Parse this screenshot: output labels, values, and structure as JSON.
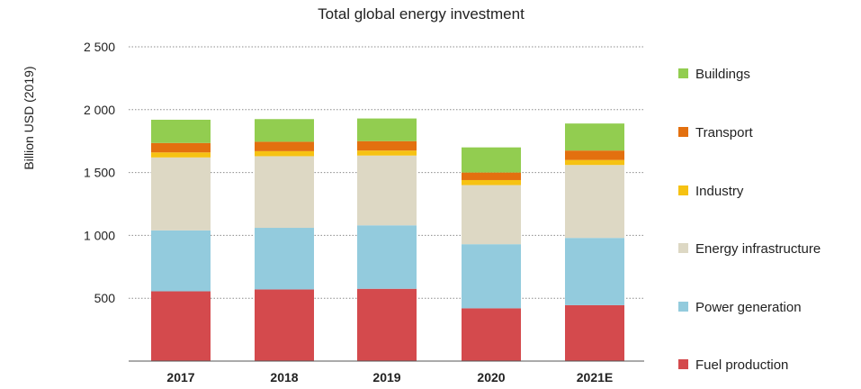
{
  "chart_data": {
    "type": "bar",
    "stacked": true,
    "title": "Total global energy investment",
    "xlabel": "",
    "ylabel": "Billion USD (2019)",
    "categories": [
      "2017",
      "2018",
      "2019",
      "2020",
      "2021E"
    ],
    "ylim": [
      0,
      2500
    ],
    "yticks": [
      500,
      1000,
      1500,
      2000,
      2500
    ],
    "ytick_labels": [
      "500",
      "1 000",
      "1 500",
      "2 000",
      "2 500"
    ],
    "grid": "horizontal dotted",
    "legend_position": "right",
    "series": [
      {
        "name": "Fuel production",
        "color": "#d44a4d",
        "values": [
          555,
          570,
          575,
          420,
          445
        ]
      },
      {
        "name": "Power generation",
        "color": "#93cbdd",
        "values": [
          485,
          490,
          505,
          510,
          535
        ]
      },
      {
        "name": "Energy infrastructure",
        "color": "#ddd8c4",
        "values": [
          580,
          570,
          555,
          470,
          580
        ]
      },
      {
        "name": "Industry",
        "color": "#f6c213",
        "values": [
          40,
          40,
          40,
          40,
          40
        ]
      },
      {
        "name": "Transport",
        "color": "#e3700f",
        "values": [
          75,
          75,
          75,
          60,
          75
        ]
      },
      {
        "name": "Buildings",
        "color": "#92cd50",
        "values": [
          185,
          180,
          180,
          200,
          215
        ]
      }
    ]
  }
}
